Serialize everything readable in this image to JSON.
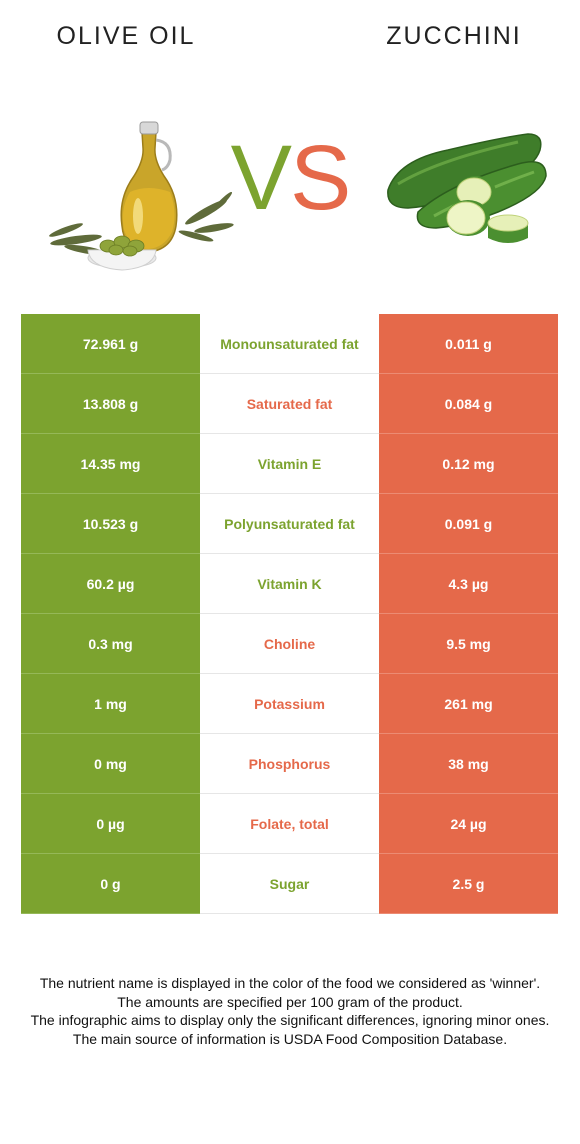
{
  "header": {
    "left_title": "Olive oil",
    "right_title": "Zucchini",
    "vs_v": "V",
    "vs_s": "S"
  },
  "colors": {
    "winner_left": "#7ca32f",
    "winner_right": "#e5694a"
  },
  "icons": {
    "left": "olive-oil-bottle-icon",
    "right": "zucchini-icon"
  },
  "rows": [
    {
      "left": "72.961 g",
      "nutrient": "Monounsaturated fat",
      "right": "0.011 g",
      "winner": "left"
    },
    {
      "left": "13.808 g",
      "nutrient": "Saturated fat",
      "right": "0.084 g",
      "winner": "right"
    },
    {
      "left": "14.35 mg",
      "nutrient": "Vitamin E",
      "right": "0.12 mg",
      "winner": "left"
    },
    {
      "left": "10.523 g",
      "nutrient": "Polyunsaturated fat",
      "right": "0.091 g",
      "winner": "left"
    },
    {
      "left": "60.2 µg",
      "nutrient": "Vitamin K",
      "right": "4.3 µg",
      "winner": "left"
    },
    {
      "left": "0.3 mg",
      "nutrient": "Choline",
      "right": "9.5 mg",
      "winner": "right"
    },
    {
      "left": "1 mg",
      "nutrient": "Potassium",
      "right": "261 mg",
      "winner": "right"
    },
    {
      "left": "0 mg",
      "nutrient": "Phosphorus",
      "right": "38 mg",
      "winner": "right"
    },
    {
      "left": "0 µg",
      "nutrient": "Folate, total",
      "right": "24 µg",
      "winner": "right"
    },
    {
      "left": "0 g",
      "nutrient": "Sugar",
      "right": "2.5 g",
      "winner": "left"
    }
  ],
  "footer": {
    "line1": "The nutrient name is displayed in the color of the food we considered as 'winner'.",
    "line2": "The amounts are specified per 100 gram of the product.",
    "line3": "The infographic aims to display only the significant differences, ignoring minor ones.",
    "line4": "The main source of information is USDA Food Composition Database."
  }
}
